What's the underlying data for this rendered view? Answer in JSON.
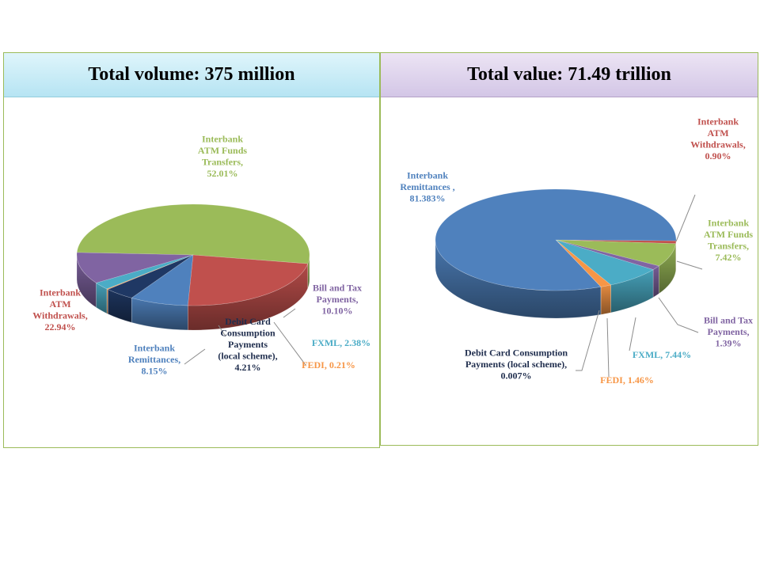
{
  "chart_data": [
    {
      "type": "pie",
      "title": "Total volume: 375 million",
      "slices": [
        {
          "label_lines": [
            "Interbank",
            "ATM  Funds",
            "Transfers,",
            "52.01%"
          ],
          "value": 52.01,
          "color": "#9bbb59"
        },
        {
          "label_lines": [
            "Bill and  Tax",
            "Payments,",
            "10.10%"
          ],
          "value": 10.1,
          "color": "#8064a2"
        },
        {
          "label_lines": [
            "FXML,  2.38%"
          ],
          "value": 2.38,
          "color": "#4bacc6"
        },
        {
          "label_lines": [
            "FEDI,  0.21%"
          ],
          "value": 0.21,
          "color": "#f79646"
        },
        {
          "label_lines": [
            "Debit Card",
            "Consumption",
            "Payments",
            "(local scheme),",
            "4.21%"
          ],
          "value": 4.21,
          "color": "#1f3864",
          "text_color": "#1f2d4d"
        },
        {
          "label_lines": [
            "Interbank",
            "Remittances,",
            "8.15%"
          ],
          "value": 8.15,
          "color": "#4f81bd"
        },
        {
          "label_lines": [
            "Interbank",
            "ATM",
            "Withdrawals,",
            "22.94%"
          ],
          "value": 22.94,
          "color": "#c0504d"
        }
      ]
    },
    {
      "type": "pie",
      "title": "Total value: 71.49 trillion",
      "slices": [
        {
          "label_lines": [
            "Interbank",
            "ATM",
            "Withdrawals,",
            "0.90%"
          ],
          "value": 0.9,
          "color": "#c0504d"
        },
        {
          "label_lines": [
            "Interbank",
            "ATM  Funds",
            "Transfers,",
            "7.42%"
          ],
          "value": 7.42,
          "color": "#9bbb59"
        },
        {
          "label_lines": [
            "Bill and  Tax",
            "Payments,",
            "1.39%"
          ],
          "value": 1.39,
          "color": "#8064a2"
        },
        {
          "label_lines": [
            "FXML,  7.44%"
          ],
          "value": 7.44,
          "color": "#4bacc6"
        },
        {
          "label_lines": [
            "FEDI,  1.46%"
          ],
          "value": 1.46,
          "color": "#f79646"
        },
        {
          "label_lines": [
            "Debit Card  Consumption",
            "Payments  (local scheme),",
            "0.007%"
          ],
          "value": 0.007,
          "color": "#1f3864",
          "text_color": "#1f2d4d"
        },
        {
          "label_lines": [
            "Interbank",
            "Remittances  ,",
            "81.383%"
          ],
          "value": 81.383,
          "color": "#4f81bd"
        }
      ]
    }
  ]
}
